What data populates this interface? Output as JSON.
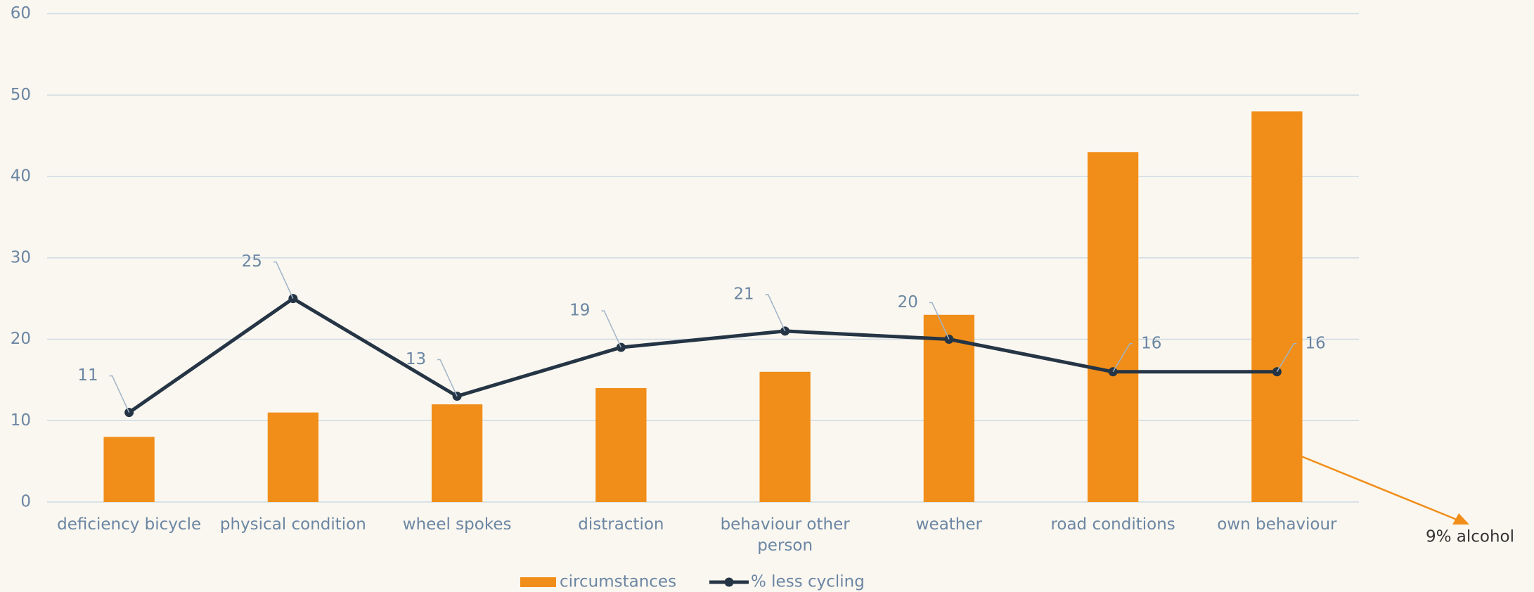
{
  "chart_data": {
    "type": "combo",
    "categories": [
      "deficiency bicycle",
      "physical condition",
      "wheel spokes",
      "distraction",
      "behaviour other person",
      "weather",
      "road conditions",
      "own behaviour"
    ],
    "series": [
      {
        "name": "circumstances",
        "type": "bar",
        "color": "#f18e19",
        "values": [
          8,
          11,
          12,
          14,
          16,
          23,
          43,
          48
        ]
      },
      {
        "name": "% less cycling",
        "type": "line",
        "color": "#253545",
        "values": [
          11,
          25,
          13,
          19,
          21,
          20,
          16,
          16
        ]
      }
    ],
    "ylim": [
      0,
      60
    ],
    "yticks": [
      0,
      10,
      20,
      30,
      40,
      50,
      60
    ],
    "grid": true,
    "legend": "bottom",
    "annotation": {
      "text": "9% alcohol",
      "color": "#f18e19"
    }
  }
}
